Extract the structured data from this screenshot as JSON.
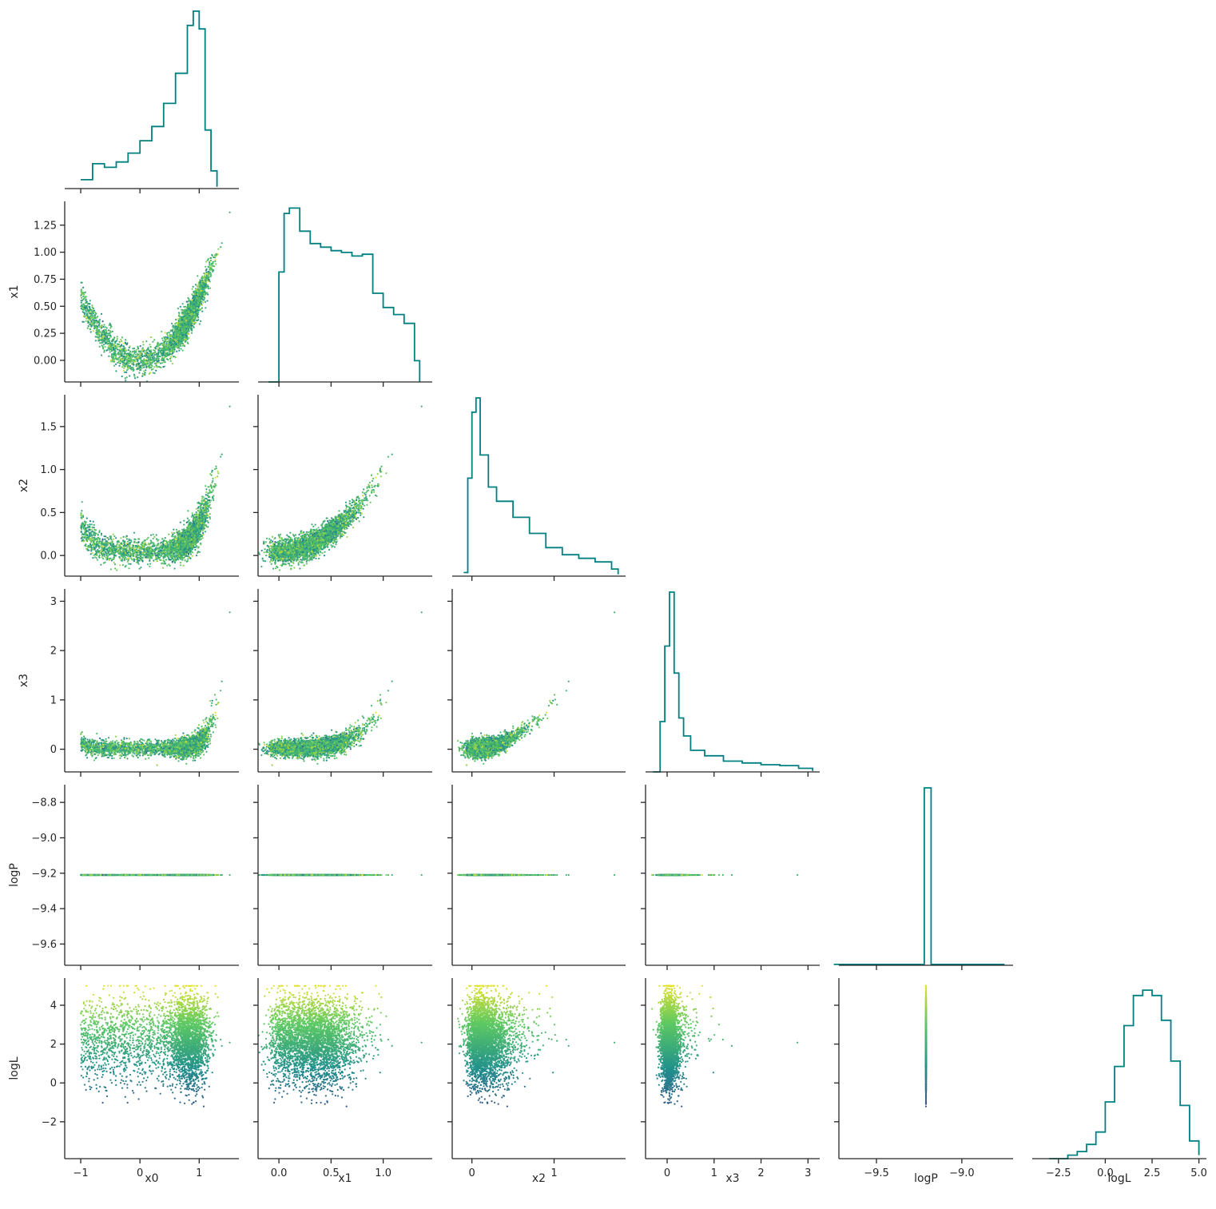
{
  "chart_data": {
    "type": "scatter",
    "layout": "corner-pairplot",
    "parameters": [
      "x0",
      "x1",
      "x2",
      "x3",
      "logP",
      "logL"
    ],
    "color_by": "logL",
    "colormap": "viridis",
    "hist_color": "#008080",
    "ranges": {
      "x0": [
        -1.27,
        1.67
      ],
      "x1": [
        -0.2,
        1.47
      ],
      "x2": [
        -0.24,
        1.87
      ],
      "x3": [
        -0.46,
        3.25
      ],
      "logP": [
        -9.72,
        -8.7
      ],
      "logL": [
        -3.9,
        5.4
      ]
    },
    "ticks": {
      "x0": [
        "−1",
        "0",
        "1"
      ],
      "x0_values": [
        -1,
        0,
        1
      ],
      "x1_y": [
        "0.00",
        "0.25",
        "0.50",
        "0.75",
        "1.00",
        "1.25"
      ],
      "x1_y_values": [
        0,
        0.25,
        0.5,
        0.75,
        1.0,
        1.25
      ],
      "x1_x": [
        "0.0",
        "0.5",
        "1.0"
      ],
      "x1_x_values": [
        0,
        0.5,
        1.0
      ],
      "x2_y": [
        "0.0",
        "0.5",
        "1.0",
        "1.5"
      ],
      "x2_y_values": [
        0,
        0.5,
        1.0,
        1.5
      ],
      "x2_x": [
        "0",
        "1"
      ],
      "x2_x_values": [
        0,
        1
      ],
      "x3": [
        "0",
        "1",
        "2",
        "3"
      ],
      "x3_values": [
        0,
        1,
        2,
        3
      ],
      "logP_y": [
        "−9.6",
        "−9.4",
        "−9.2",
        "−9.0",
        "−8.8"
      ],
      "logP_y_values": [
        -9.6,
        -9.4,
        -9.2,
        -9.0,
        -8.8
      ],
      "logP_x": [
        "−9.5",
        "−9.0"
      ],
      "logP_x_values": [
        -9.5,
        -9.0
      ],
      "logL_y": [
        "−2",
        "0",
        "2",
        "4"
      ],
      "logL_y_values": [
        -2,
        0,
        2,
        4
      ],
      "logL_x": [
        "−2.5",
        "0.0",
        "2.5",
        "5.0"
      ],
      "logL_x_values": [
        -2.5,
        0,
        2.5,
        5.0
      ]
    },
    "logP_constant": -9.21,
    "marginals": {
      "x0": {
        "x": [
          -1.0,
          -0.8,
          -0.6,
          -0.4,
          -0.2,
          0.0,
          0.2,
          0.4,
          0.6,
          0.8,
          0.9,
          1.0,
          1.1,
          1.2,
          1.3
        ],
        "density": [
          0.05,
          0.14,
          0.12,
          0.15,
          0.2,
          0.27,
          0.35,
          0.48,
          0.65,
          0.92,
          1.0,
          0.9,
          0.33,
          0.1,
          0.01
        ]
      },
      "x1": {
        "x": [
          -0.1,
          0.0,
          0.05,
          0.1,
          0.2,
          0.3,
          0.4,
          0.5,
          0.6,
          0.7,
          0.8,
          0.9,
          1.0,
          1.1,
          1.2,
          1.3,
          1.35
        ],
        "density": [
          0.0,
          0.62,
          0.95,
          0.98,
          0.85,
          0.78,
          0.76,
          0.74,
          0.73,
          0.71,
          0.72,
          0.5,
          0.42,
          0.38,
          0.33,
          0.12,
          0.0
        ]
      },
      "x2": {
        "x": [
          -0.1,
          -0.05,
          0.0,
          0.05,
          0.1,
          0.2,
          0.3,
          0.5,
          0.7,
          0.9,
          1.1,
          1.3,
          1.5,
          1.7,
          1.78
        ],
        "density": [
          0.02,
          0.55,
          0.92,
          1.0,
          0.68,
          0.5,
          0.42,
          0.33,
          0.24,
          0.16,
          0.12,
          0.1,
          0.08,
          0.04,
          0.01
        ]
      },
      "x3": {
        "x": [
          -0.3,
          -0.15,
          -0.05,
          0.05,
          0.15,
          0.25,
          0.35,
          0.5,
          0.8,
          1.2,
          1.6,
          2.0,
          2.4,
          2.8,
          3.1
        ],
        "density": [
          0.0,
          0.28,
          0.7,
          1.0,
          0.55,
          0.3,
          0.2,
          0.12,
          0.09,
          0.06,
          0.05,
          0.04,
          0.035,
          0.02,
          0.005
        ]
      },
      "logP": {
        "x": [
          -9.75,
          -9.22,
          -9.2,
          -9.18,
          -8.75
        ],
        "density": [
          0.005,
          1.0,
          1.0,
          0.005,
          0.005
        ]
      },
      "logL": {
        "x": [
          -3.0,
          -2.5,
          -2.0,
          -1.5,
          -1.0,
          -0.5,
          0.0,
          0.5,
          1.0,
          1.5,
          2.0,
          2.5,
          3.0,
          3.5,
          4.0,
          4.5,
          5.0
        ],
        "density": [
          0.0,
          0.0,
          0.02,
          0.04,
          0.08,
          0.15,
          0.32,
          0.52,
          0.75,
          0.92,
          0.95,
          0.92,
          0.78,
          0.55,
          0.3,
          0.1,
          0.02
        ]
      }
    }
  }
}
